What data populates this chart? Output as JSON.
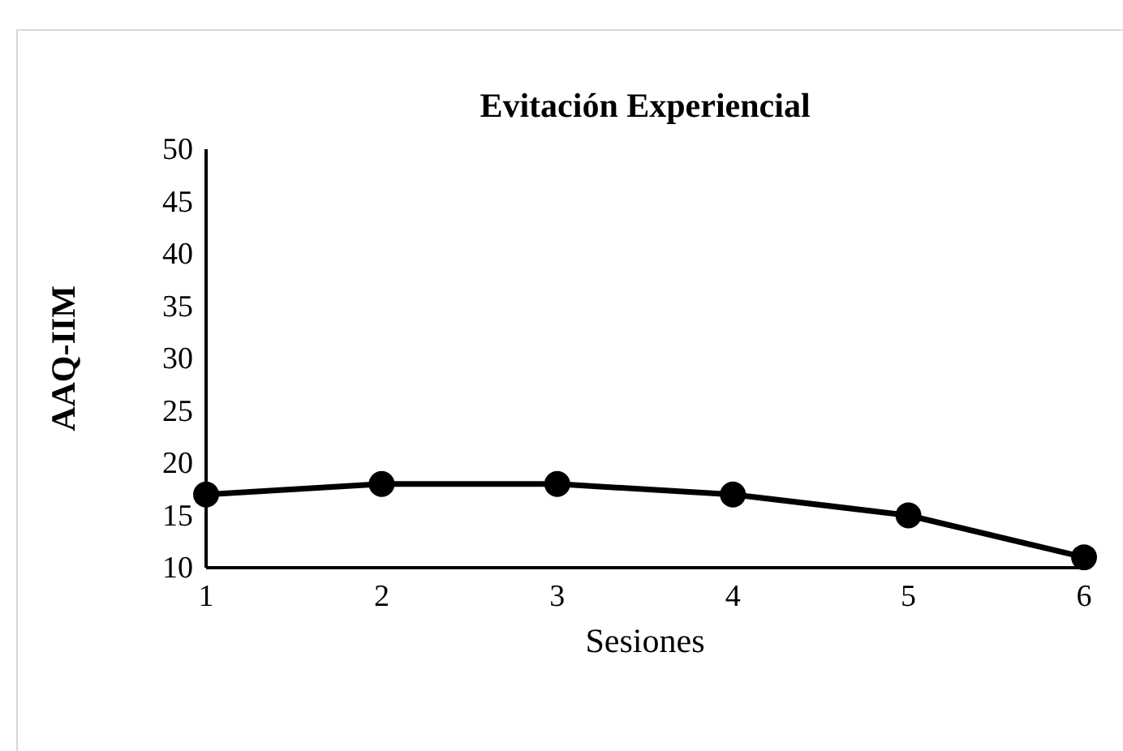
{
  "chart_data": {
    "type": "line",
    "title": "Evitación Experiencial",
    "xlabel": "Sesiones",
    "ylabel": "AAQ-IIM",
    "x": [
      1,
      2,
      3,
      4,
      5,
      6
    ],
    "series": [
      {
        "color": "#000000",
        "values": [
          17,
          18,
          18,
          17,
          15,
          11
        ]
      }
    ],
    "xlim": [
      1,
      6
    ],
    "xticks": [
      1,
      2,
      3,
      4,
      5,
      6
    ],
    "ylim": [
      10,
      50
    ],
    "yticks": [
      10,
      15,
      20,
      25,
      30,
      35,
      40,
      45,
      50
    ],
    "grid": false,
    "marker": "circle",
    "line_style": "solid"
  }
}
